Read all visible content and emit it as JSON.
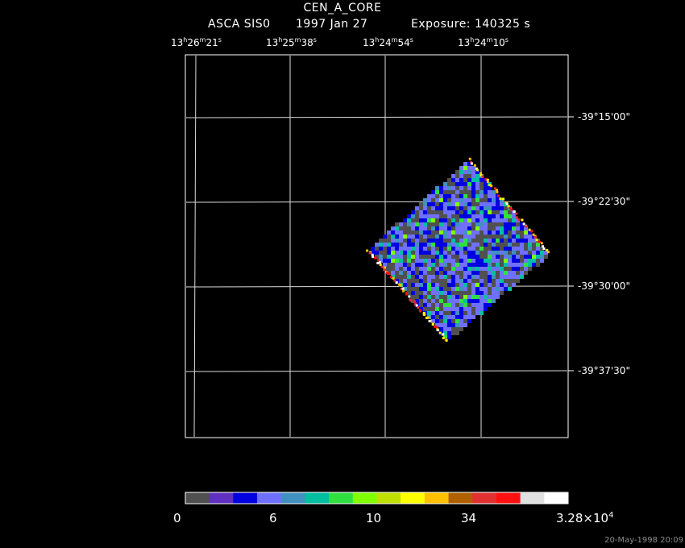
{
  "header": {
    "title": "CEN_A_CORE",
    "instrument": "ASCA SIS0",
    "date": "1997 Jan 27",
    "exposure": "Exposure: 140325 s"
  },
  "ra_ticks": [
    {
      "h": "13",
      "m": "26",
      "s": "21"
    },
    {
      "h": "13",
      "m": "25",
      "s": "38"
    },
    {
      "h": "13",
      "m": "24",
      "s": "54"
    },
    {
      "h": "13",
      "m": "24",
      "s": "10"
    }
  ],
  "dec_ticks": [
    "-39°15'00\"",
    "-39°22'30\"",
    "-39°30'00\"",
    "-39°37'30\""
  ],
  "colorbar": {
    "colors": [
      "#505050",
      "#6030c0",
      "#0000e0",
      "#7070ff",
      "#4090c0",
      "#00c0a0",
      "#30e040",
      "#80ff00",
      "#c0e000",
      "#ffff00",
      "#ffc000",
      "#b06000",
      "#e03030",
      "#ff1010",
      "#e0e0e0",
      "#ffffff"
    ],
    "labels": [
      {
        "text": "0"
      },
      {
        "text": "6"
      },
      {
        "text": "10"
      },
      {
        "text": "34"
      },
      {
        "text": "3.28×10",
        "exp": "4"
      }
    ]
  },
  "timestamp": "20-May-1998 20:09"
}
